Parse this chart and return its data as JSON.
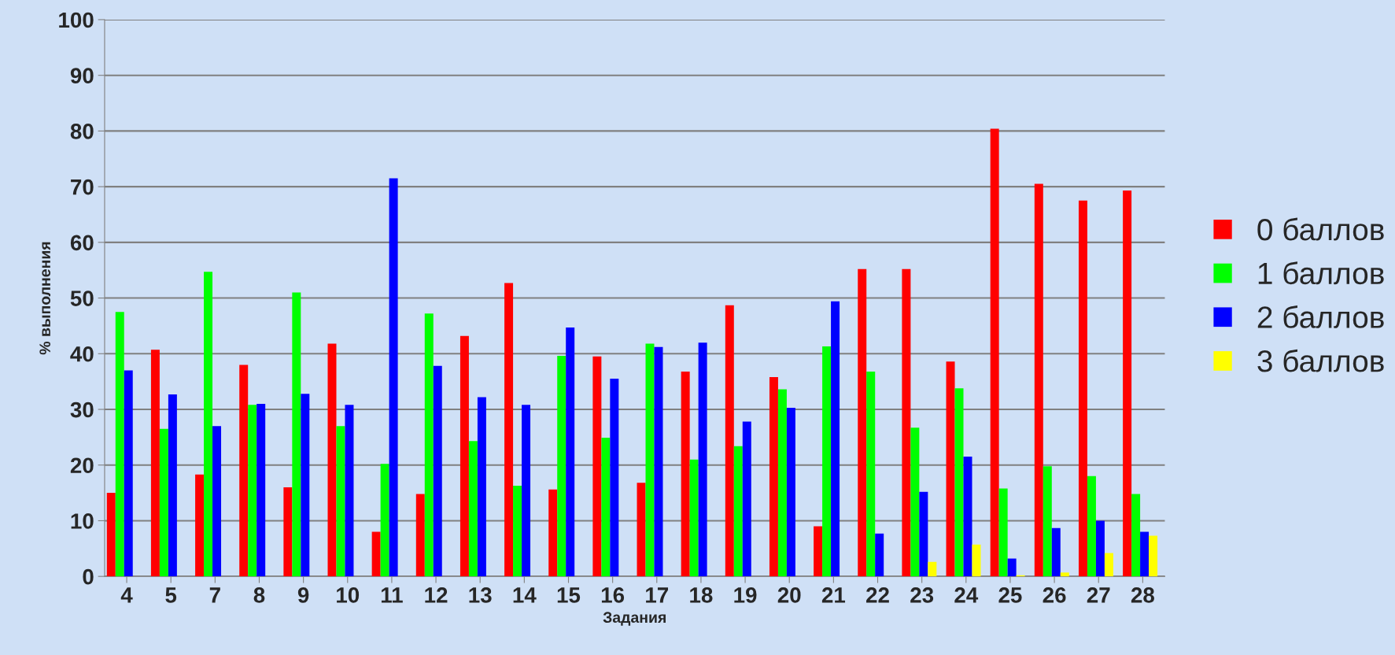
{
  "chart_data": {
    "type": "bar",
    "xlabel": "Задания",
    "ylabel": "% выполнения",
    "categories": [
      "4",
      "5",
      "7",
      "8",
      "9",
      "10",
      "11",
      "12",
      "13",
      "14",
      "15",
      "16",
      "17",
      "18",
      "19",
      "20",
      "21",
      "22",
      "23",
      "24",
      "25",
      "26",
      "27",
      "28"
    ],
    "series": [
      {
        "name": "0 баллов",
        "color": "#ff0000",
        "values": [
          15,
          40.7,
          18.3,
          38,
          16,
          41.8,
          8,
          14.8,
          43.2,
          52.7,
          15.6,
          39.5,
          16.8,
          36.8,
          48.7,
          35.8,
          9,
          55.2,
          55.2,
          38.6,
          80.4,
          70.5,
          67.5,
          69.3
        ]
      },
      {
        "name": "1 баллов",
        "color": "#00ff00",
        "values": [
          47.5,
          26.5,
          54.7,
          30.8,
          51,
          27,
          20.2,
          47.2,
          24.3,
          16.3,
          39.6,
          24.9,
          41.8,
          21,
          23.4,
          33.6,
          41.3,
          36.8,
          26.7,
          33.8,
          15.8,
          19.8,
          18,
          14.8
        ]
      },
      {
        "name": "2 баллов",
        "color": "#0000ff",
        "values": [
          37,
          32.7,
          27,
          31,
          32.8,
          30.8,
          71.5,
          37.8,
          32.2,
          30.8,
          44.7,
          35.5,
          41.2,
          42,
          27.8,
          30.3,
          49.4,
          7.7,
          15.2,
          21.5,
          3.2,
          8.7,
          10,
          8
        ]
      },
      {
        "name": "3 баллов",
        "color": "#ffff00",
        "values": [
          null,
          null,
          null,
          null,
          null,
          null,
          null,
          null,
          null,
          null,
          null,
          null,
          null,
          null,
          null,
          null,
          null,
          null,
          2.6,
          5.7,
          0.2,
          0.7,
          4.2,
          7.3
        ]
      }
    ],
    "ylim": [
      0,
      100
    ],
    "yticks": [
      0,
      10,
      20,
      30,
      40,
      50,
      60,
      70,
      80,
      90,
      100
    ],
    "grid": "y",
    "legend": "right"
  }
}
